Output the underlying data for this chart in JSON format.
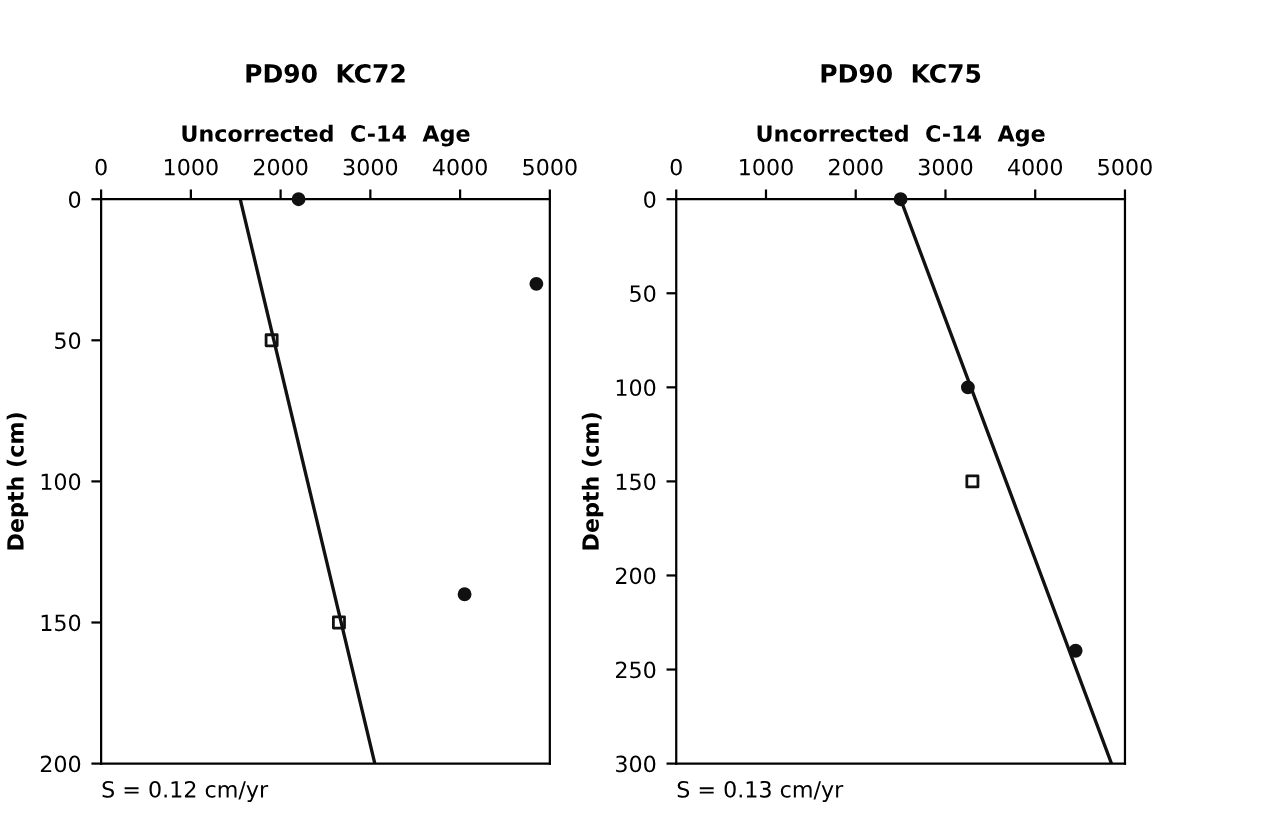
{
  "chart_data": [
    {
      "type": "scatter",
      "title": "PD90  KC72",
      "xlabel": "Uncorrected  C-14  Age",
      "ylabel": "Depth (cm)",
      "annotations": [
        "S = 0.12 cm/yr"
      ],
      "xlim": [
        0,
        5000
      ],
      "xticks": [
        0,
        1000,
        2000,
        3000,
        4000,
        5000
      ],
      "ylim": [
        200,
        0
      ],
      "yticks": [
        0,
        50,
        100,
        150,
        200
      ],
      "grid": false,
      "legend": false,
      "series": [
        {
          "marker": "circle",
          "color": "#111111",
          "x": [
            2200,
            4850,
            4050
          ],
          "values": [
            0,
            30,
            140
          ]
        },
        {
          "marker": "square",
          "color": "#111111",
          "x": [
            1900,
            2650
          ],
          "values": [
            50,
            150
          ]
        },
        {
          "type": "line",
          "marker": "none",
          "color": "#111111",
          "x": [
            1550,
            3050
          ],
          "values": [
            0,
            200
          ]
        }
      ]
    },
    {
      "type": "scatter",
      "title": "PD90  KC75",
      "xlabel": "Uncorrected  C-14  Age",
      "ylabel": "Depth (cm)",
      "annotations": [
        "S = 0.13 cm/yr"
      ],
      "xlim": [
        0,
        5000
      ],
      "xticks": [
        0,
        1000,
        2000,
        3000,
        4000,
        5000
      ],
      "ylim": [
        300,
        0
      ],
      "yticks": [
        0,
        50,
        100,
        150,
        200,
        250,
        300
      ],
      "grid": false,
      "legend": false,
      "series": [
        {
          "marker": "circle",
          "color": "#111111",
          "x": [
            2500,
            3250,
            4450
          ],
          "values": [
            0,
            100,
            240
          ]
        },
        {
          "marker": "square",
          "color": "#111111",
          "x": [
            3300
          ],
          "values": [
            150
          ]
        },
        {
          "type": "line",
          "marker": "none",
          "color": "#111111",
          "x": [
            2500,
            4850
          ],
          "values": [
            0,
            300
          ]
        }
      ]
    }
  ]
}
